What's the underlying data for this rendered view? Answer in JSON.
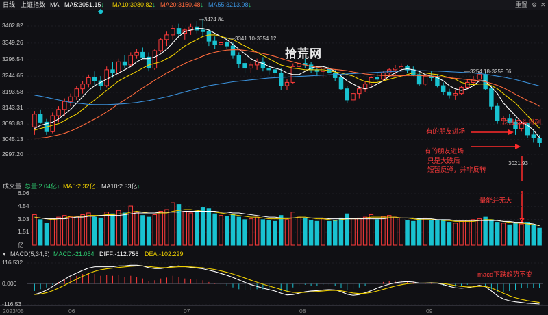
{
  "topbar": {
    "period": "日线",
    "index_name": "上证指数",
    "ma_label": "MA",
    "ma5": "MA5:3051.15",
    "ma10": "MA10:3080.82",
    "ma20": "MA20:3150.48",
    "ma55": "MA55:3213.98",
    "reset": "重置",
    "down_arrow": "↓",
    "colors": {
      "ma5": "#ffffff",
      "ma10": "#f0d000",
      "ma20": "#ff6a3c",
      "ma55": "#3a8fd8"
    }
  },
  "price_axis": [
    "3402.82",
    "3349.26",
    "3296.54",
    "3244.65",
    "3193.58",
    "3143.31",
    "3093.83",
    "3045.13",
    "2997.20"
  ],
  "price_labels": {
    "high": "3424.84",
    "range1": "3341.10-3354.12",
    "range2": "3254.18-3259.66",
    "low": "3021.93"
  },
  "watermark": "拾荒网",
  "annotations": {
    "ma_cross": "均线交头排列",
    "friends1": "有的朋友进场",
    "friends2": "有的朋友进场",
    "rebound1": "只是大跌后",
    "rebound2": "短暂反弹，并非反转",
    "volume_note": "量能并无大",
    "macd_note": "macd下跌趋势不变"
  },
  "volume_header": {
    "label": "成交量",
    "total": "总量:2.04亿",
    "ma5": "MA5:2.32亿",
    "ma10": "MA10:2.33亿"
  },
  "volume_axis": [
    "6.06",
    "4.54",
    "3.03",
    "1.51",
    "亿"
  ],
  "macd_header": {
    "label": "MACD(5,34,5)",
    "macd": "MACD:-21.054",
    "diff": "DIFF:-112.756",
    "dea": "DEA:-102.229"
  },
  "macd_axis": [
    "116.532",
    "0.000",
    "-116.53"
  ],
  "date_axis": [
    "2023/05",
    "06",
    "07",
    "08",
    "09"
  ],
  "chart_data": {
    "type": "candlestick",
    "price_range": [
      2997.2,
      3424.84
    ],
    "ohlc": [
      [
        3085,
        3135,
        3060,
        3125
      ],
      [
        3125,
        3140,
        3095,
        3100
      ],
      [
        3100,
        3110,
        3060,
        3070
      ],
      [
        3070,
        3130,
        3065,
        3120
      ],
      [
        3120,
        3150,
        3100,
        3140
      ],
      [
        3140,
        3175,
        3120,
        3165
      ],
      [
        3165,
        3190,
        3150,
        3180
      ],
      [
        3180,
        3215,
        3170,
        3205
      ],
      [
        3205,
        3230,
        3190,
        3220
      ],
      [
        3220,
        3250,
        3210,
        3240
      ],
      [
        3240,
        3260,
        3215,
        3230
      ],
      [
        3230,
        3245,
        3200,
        3215
      ],
      [
        3215,
        3275,
        3210,
        3265
      ],
      [
        3265,
        3290,
        3240,
        3255
      ],
      [
        3255,
        3300,
        3250,
        3290
      ],
      [
        3290,
        3310,
        3270,
        3280
      ],
      [
        3280,
        3320,
        3275,
        3310
      ],
      [
        3310,
        3330,
        3300,
        3320
      ],
      [
        3320,
        3335,
        3300,
        3305
      ],
      [
        3305,
        3320,
        3260,
        3270
      ],
      [
        3270,
        3330,
        3265,
        3325
      ],
      [
        3325,
        3365,
        3320,
        3360
      ],
      [
        3360,
        3385,
        3340,
        3375
      ],
      [
        3375,
        3405,
        3360,
        3395
      ],
      [
        3395,
        3410,
        3370,
        3380
      ],
      [
        3380,
        3395,
        3360,
        3390
      ],
      [
        3390,
        3410,
        3375,
        3400
      ],
      [
        3400,
        3420,
        3380,
        3390
      ],
      [
        3390,
        3424.84,
        3370,
        3385
      ],
      [
        3385,
        3390,
        3340,
        3355
      ],
      [
        3355,
        3370,
        3330,
        3345
      ],
      [
        3345,
        3360,
        3320,
        3350
      ],
      [
        3350,
        3365,
        3330,
        3340
      ],
      [
        3340,
        3350,
        3300,
        3310
      ],
      [
        3310,
        3320,
        3270,
        3285
      ],
      [
        3285,
        3300,
        3255,
        3270
      ],
      [
        3270,
        3290,
        3255,
        3280
      ],
      [
        3280,
        3300,
        3265,
        3290
      ],
      [
        3290,
        3305,
        3260,
        3270
      ],
      [
        3270,
        3285,
        3250,
        3265
      ],
      [
        3265,
        3280,
        3240,
        3255
      ],
      [
        3255,
        3270,
        3200,
        3215
      ],
      [
        3215,
        3235,
        3200,
        3225
      ],
      [
        3225,
        3285,
        3220,
        3275
      ],
      [
        3275,
        3295,
        3260,
        3285
      ],
      [
        3285,
        3300,
        3270,
        3280
      ],
      [
        3280,
        3290,
        3255,
        3265
      ],
      [
        3265,
        3275,
        3245,
        3260
      ],
      [
        3260,
        3275,
        3240,
        3270
      ],
      [
        3270,
        3280,
        3250,
        3255
      ],
      [
        3255,
        3265,
        3230,
        3240
      ],
      [
        3240,
        3250,
        3200,
        3205
      ],
      [
        3205,
        3215,
        3160,
        3170
      ],
      [
        3170,
        3200,
        3160,
        3190
      ],
      [
        3190,
        3215,
        3175,
        3205
      ],
      [
        3205,
        3230,
        3195,
        3220
      ],
      [
        3220,
        3245,
        3210,
        3240
      ],
      [
        3240,
        3255,
        3225,
        3235
      ],
      [
        3235,
        3260,
        3230,
        3255
      ],
      [
        3255,
        3270,
        3245,
        3265
      ],
      [
        3265,
        3280,
        3250,
        3270
      ],
      [
        3270,
        3285,
        3260,
        3275
      ],
      [
        3275,
        3280,
        3255,
        3265
      ],
      [
        3265,
        3275,
        3245,
        3250
      ],
      [
        3250,
        3260,
        3215,
        3220
      ],
      [
        3220,
        3250,
        3215,
        3245
      ],
      [
        3245,
        3260,
        3230,
        3240
      ],
      [
        3240,
        3250,
        3210,
        3215
      ],
      [
        3215,
        3225,
        3185,
        3195
      ],
      [
        3195,
        3205,
        3175,
        3185
      ],
      [
        3185,
        3200,
        3170,
        3190
      ],
      [
        3190,
        3215,
        3185,
        3210
      ],
      [
        3210,
        3235,
        3205,
        3225
      ],
      [
        3225,
        3245,
        3215,
        3235
      ],
      [
        3235,
        3254,
        3225,
        3250
      ],
      [
        3250,
        3259.66,
        3200,
        3205
      ],
      [
        3205,
        3215,
        3140,
        3150
      ],
      [
        3150,
        3160,
        3095,
        3105
      ],
      [
        3105,
        3120,
        3090,
        3110
      ],
      [
        3110,
        3125,
        3095,
        3100
      ],
      [
        3100,
        3110,
        3060,
        3080
      ],
      [
        3080,
        3105,
        3070,
        3095
      ],
      [
        3095,
        3100,
        3050,
        3060
      ],
      [
        3060,
        3075,
        3035,
        3050
      ],
      [
        3050,
        3060,
        3021.93,
        3035
      ]
    ],
    "ma_lines": [
      {
        "name": "MA5",
        "color": "#ffffff",
        "values": [
          3080,
          3090,
          3095,
          3100,
          3110,
          3125,
          3140,
          3160,
          3180,
          3200,
          3215,
          3225,
          3235,
          3245,
          3255,
          3265,
          3275,
          3290,
          3300,
          3300,
          3305,
          3315,
          3330,
          3350,
          3370,
          3385,
          3390,
          3395,
          3395,
          3390,
          3380,
          3370,
          3360,
          3345,
          3330,
          3315,
          3300,
          3290,
          3285,
          3275,
          3270,
          3265,
          3255,
          3250,
          3250,
          3260,
          3270,
          3275,
          3275,
          3270,
          3260,
          3245,
          3230,
          3220,
          3210,
          3205,
          3210,
          3220,
          3230,
          3245,
          3255,
          3265,
          3268,
          3265,
          3260,
          3250,
          3245,
          3240,
          3230,
          3215,
          3205,
          3200,
          3205,
          3215,
          3230,
          3230,
          3210,
          3190,
          3160,
          3140,
          3120,
          3100,
          3090,
          3075,
          3051
        ]
      },
      {
        "name": "MA10",
        "color": "#f0d000",
        "values": [
          3075,
          3080,
          3085,
          3090,
          3095,
          3105,
          3115,
          3125,
          3140,
          3155,
          3170,
          3185,
          3200,
          3215,
          3230,
          3240,
          3250,
          3260,
          3270,
          3280,
          3285,
          3290,
          3300,
          3310,
          3325,
          3340,
          3350,
          3360,
          3370,
          3375,
          3375,
          3370,
          3365,
          3360,
          3350,
          3340,
          3330,
          3320,
          3310,
          3300,
          3290,
          3280,
          3275,
          3270,
          3268,
          3265,
          3265,
          3265,
          3265,
          3262,
          3258,
          3255,
          3250,
          3245,
          3235,
          3228,
          3225,
          3225,
          3230,
          3235,
          3240,
          3245,
          3250,
          3255,
          3255,
          3255,
          3252,
          3250,
          3245,
          3240,
          3235,
          3225,
          3220,
          3218,
          3220,
          3220,
          3215,
          3205,
          3190,
          3175,
          3160,
          3140,
          3120,
          3100,
          3081
        ]
      },
      {
        "name": "MA20",
        "color": "#ff6a3c",
        "values": [
          3050,
          3050,
          3052,
          3056,
          3060,
          3065,
          3072,
          3080,
          3090,
          3100,
          3110,
          3120,
          3132,
          3145,
          3158,
          3170,
          3182,
          3195,
          3208,
          3220,
          3232,
          3243,
          3255,
          3265,
          3275,
          3285,
          3293,
          3300,
          3308,
          3315,
          3320,
          3324,
          3327,
          3328,
          3328,
          3326,
          3323,
          3320,
          3316,
          3312,
          3307,
          3301,
          3295,
          3290,
          3285,
          3280,
          3276,
          3273,
          3270,
          3268,
          3266,
          3264,
          3262,
          3258,
          3255,
          3252,
          3250,
          3248,
          3247,
          3246,
          3246,
          3246,
          3247,
          3247,
          3247,
          3246,
          3245,
          3244,
          3242,
          3240,
          3238,
          3236,
          3234,
          3232,
          3230,
          3227,
          3222,
          3216,
          3208,
          3198,
          3188,
          3178,
          3168,
          3160,
          3150
        ]
      },
      {
        "name": "MA55",
        "color": "#3a8fd8",
        "values": [
          3185,
          3182,
          3178,
          3174,
          3170,
          3166,
          3162,
          3160,
          3158,
          3156,
          3155,
          3155,
          3155,
          3156,
          3157,
          3158,
          3160,
          3162,
          3165,
          3168,
          3172,
          3176,
          3180,
          3185,
          3190,
          3195,
          3200,
          3205,
          3210,
          3215,
          3218,
          3221,
          3224,
          3227,
          3229,
          3231,
          3233,
          3235,
          3237,
          3239,
          3240,
          3241,
          3242,
          3243,
          3244,
          3245,
          3246,
          3247,
          3248,
          3249,
          3250,
          3251,
          3252,
          3253,
          3254,
          3255,
          3256,
          3257,
          3258,
          3259,
          3260,
          3261,
          3262,
          3262,
          3262,
          3262,
          3261,
          3261,
          3260,
          3259,
          3258,
          3257,
          3256,
          3255,
          3253,
          3251,
          3248,
          3245,
          3242,
          3238,
          3234,
          3229,
          3224,
          3219,
          3214
        ]
      }
    ],
    "volume": [
      3.6,
      3.0,
      2.6,
      3.1,
      3.3,
      3.5,
      3.3,
      3.4,
      3.6,
      3.8,
      3.3,
      3.2,
      3.9,
      3.7,
      4.1,
      3.8,
      4.6,
      3.9,
      3.5,
      3.3,
      3.6,
      4.0,
      4.2,
      5.0,
      4.8,
      4.0,
      3.8,
      3.9,
      4.4,
      4.3,
      3.7,
      3.5,
      3.4,
      3.6,
      3.3,
      3.0,
      3.1,
      3.3,
      3.0,
      2.9,
      2.8,
      3.5,
      3.0,
      3.9,
      3.3,
      3.2,
      2.9,
      2.8,
      3.1,
      2.8,
      2.9,
      3.2,
      3.7,
      3.1,
      3.2,
      3.3,
      3.6,
      3.0,
      3.4,
      3.5,
      3.3,
      3.2,
      2.9,
      2.8,
      3.1,
      3.2,
      2.9,
      2.9,
      3.0,
      2.7,
      2.6,
      2.8,
      2.9,
      3.0,
      3.1,
      3.3,
      3.0,
      2.7,
      2.6,
      2.4,
      2.6,
      2.5,
      2.7,
      2.4,
      2.0
    ],
    "volume_ma5": [
      3.3,
      3.2,
      3.1,
      3.0,
      3.1,
      3.2,
      3.4,
      3.4,
      3.4,
      3.5,
      3.5,
      3.5,
      3.6,
      3.6,
      3.7,
      3.7,
      3.9,
      4.0,
      3.9,
      3.8,
      3.8,
      3.8,
      3.8,
      4.0,
      4.1,
      4.2,
      4.2,
      4.1,
      4.0,
      4.0,
      3.9,
      3.8,
      3.7,
      3.6,
      3.5,
      3.4,
      3.3,
      3.3,
      3.2,
      3.1,
      3.1,
      3.1,
      3.1,
      3.2,
      3.3,
      3.3,
      3.2,
      3.1,
      3.1,
      3.0,
      2.9,
      3.0,
      3.1,
      3.1,
      3.1,
      3.2,
      3.3,
      3.3,
      3.3,
      3.3,
      3.3,
      3.2,
      3.2,
      3.1,
      3.0,
      3.0,
      3.0,
      3.0,
      2.9,
      2.9,
      2.8,
      2.8,
      2.8,
      2.8,
      2.9,
      3.0,
      3.0,
      2.9,
      2.8,
      2.7,
      2.6,
      2.6,
      2.5,
      2.4,
      2.3
    ],
    "volume_ma10": [
      3.2,
      3.2,
      3.1,
      3.1,
      3.1,
      3.1,
      3.2,
      3.3,
      3.3,
      3.4,
      3.4,
      3.5,
      3.5,
      3.5,
      3.5,
      3.6,
      3.7,
      3.8,
      3.8,
      3.8,
      3.8,
      3.9,
      3.9,
      3.9,
      3.9,
      4.0,
      4.0,
      4.0,
      4.0,
      4.0,
      4.0,
      3.9,
      3.9,
      3.8,
      3.8,
      3.7,
      3.6,
      3.5,
      3.4,
      3.3,
      3.3,
      3.2,
      3.2,
      3.2,
      3.2,
      3.2,
      3.2,
      3.2,
      3.2,
      3.1,
      3.1,
      3.1,
      3.1,
      3.1,
      3.1,
      3.1,
      3.1,
      3.1,
      3.1,
      3.2,
      3.2,
      3.2,
      3.2,
      3.2,
      3.1,
      3.1,
      3.1,
      3.0,
      3.0,
      3.0,
      2.9,
      2.9,
      2.9,
      2.9,
      2.9,
      2.9,
      2.9,
      2.9,
      2.8,
      2.8,
      2.7,
      2.7,
      2.6,
      2.5,
      2.3
    ],
    "macd_range": [
      -116.53,
      116.532
    ],
    "macd_hist": [
      -40,
      -30,
      -20,
      -5,
      10,
      25,
      35,
      45,
      55,
      60,
      55,
      45,
      50,
      45,
      50,
      40,
      45,
      40,
      30,
      15,
      20,
      30,
      35,
      45,
      40,
      30,
      28,
      25,
      20,
      10,
      5,
      -5,
      -10,
      -20,
      -30,
      -35,
      -35,
      -30,
      -30,
      -30,
      -30,
      -40,
      -40,
      -20,
      -10,
      -5,
      -10,
      -10,
      -5,
      -8,
      -12,
      -25,
      -35,
      -30,
      -20,
      -10,
      0,
      5,
      10,
      15,
      18,
      18,
      15,
      10,
      0,
      5,
      5,
      0,
      -10,
      -15,
      -15,
      -10,
      -5,
      0,
      5,
      -10,
      -30,
      -45,
      -45,
      -40,
      -35,
      -25,
      -25,
      -22,
      -21
    ],
    "macd_diff": [
      -60,
      -50,
      -35,
      -15,
      5,
      25,
      45,
      60,
      75,
      88,
      95,
      95,
      95,
      95,
      100,
      100,
      104,
      104,
      100,
      90,
      85,
      85,
      90,
      98,
      100,
      96,
      92,
      88,
      84,
      76,
      68,
      58,
      48,
      36,
      22,
      8,
      -4,
      -14,
      -24,
      -32,
      -40,
      -52,
      -62,
      -60,
      -52,
      -44,
      -40,
      -38,
      -34,
      -32,
      -34,
      -44,
      -58,
      -64,
      -60,
      -50,
      -38,
      -24,
      -12,
      -2,
      6,
      10,
      12,
      10,
      4,
      4,
      6,
      4,
      -4,
      -14,
      -22,
      -24,
      -22,
      -16,
      -8,
      -16,
      -40,
      -66,
      -84,
      -94,
      -100,
      -104,
      -108,
      -110,
      -112.756
    ]
  }
}
